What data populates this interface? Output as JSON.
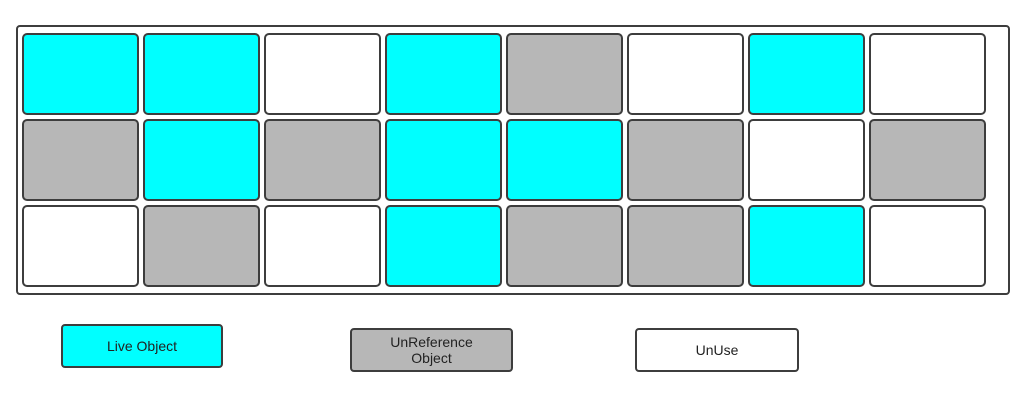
{
  "colors": {
    "live": "#00ffff",
    "unreferenced": "#b7b7b7",
    "unused": "#ffffff",
    "border": "#3d3d3d"
  },
  "grid": {
    "rows": [
      [
        "live",
        "live",
        "unused",
        "live",
        "unreferenced",
        "unused",
        "live",
        "unused"
      ],
      [
        "unreferenced",
        "live",
        "unreferenced",
        "live",
        "live",
        "unreferenced",
        "unused",
        "unreferenced"
      ],
      [
        "unused",
        "unreferenced",
        "unused",
        "live",
        "unreferenced",
        "unreferenced",
        "live",
        "unused"
      ]
    ]
  },
  "legend": {
    "live": {
      "label": "Live Object",
      "state": "live"
    },
    "unreferenced": {
      "label": "UnReference Object",
      "state": "unreferenced"
    },
    "unused": {
      "label": "UnUse",
      "state": "unused"
    }
  }
}
